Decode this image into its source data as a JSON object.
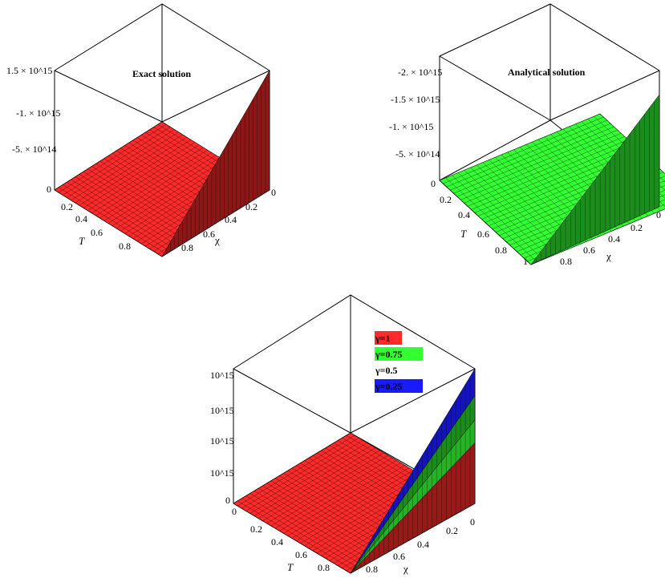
{
  "chart_data": [
    {
      "type": "surface",
      "title": "Exact solution",
      "xlabel": "χ",
      "ylabel": "T",
      "x_ticks": [
        "0",
        "0.2",
        "0.4",
        "0.6",
        "0.8"
      ],
      "y_ticks": [
        "0",
        "0.2",
        "0.4",
        "0.6",
        "0.8"
      ],
      "z_ticks": [
        "0",
        "-5. × 10^14",
        "-1. × 10^15",
        "1.5 × 10^15"
      ],
      "xlim": [
        0,
        1
      ],
      "ylim": [
        0,
        1
      ],
      "series": [
        {
          "color": "#ff2a2a",
          "z_min": 0,
          "z_max_magnitude": 1500000000000000.0
        }
      ]
    },
    {
      "type": "surface",
      "title": "Analytical solution",
      "xlabel": "χ",
      "ylabel": "T",
      "x_ticks": [
        "0",
        "0.2",
        "0.4",
        "0.6",
        "0.8"
      ],
      "y_ticks": [
        "0",
        "0.2",
        "0.4",
        "0.6",
        "0.8",
        "1"
      ],
      "z_ticks": [
        "-5. × 10^14",
        "-1. × 10^15",
        "-1.5 × 10^15",
        "-2. × 10^15"
      ],
      "xlim": [
        0,
        1
      ],
      "ylim": [
        0,
        1
      ],
      "series": [
        {
          "color": "#33ff33",
          "z_min": 0,
          "z_max_magnitude": 2000000000000000.0
        }
      ]
    },
    {
      "type": "surface",
      "title": "",
      "xlabel": "χ",
      "ylabel": "T",
      "x_ticks": [
        "0",
        "0.2",
        "0.4",
        "0.6",
        "0.8"
      ],
      "y_ticks": [
        "0",
        "0.2",
        "0.4",
        "0.6",
        "0.8"
      ],
      "z_ticks": [
        "0",
        "10^15",
        "10^15",
        "10^15",
        "10^15"
      ],
      "xlim": [
        0,
        1
      ],
      "ylim": [
        0,
        1
      ],
      "legend": "top-center",
      "series": [
        {
          "name": "γ=1",
          "color": "#ff2a2a",
          "rel_height": 0.45
        },
        {
          "name": "γ=0.75",
          "color": "#33ff33",
          "rel_height": 0.62
        },
        {
          "name": "γ=0.5",
          "color": "#ffffff",
          "rel_height": 0.8
        },
        {
          "name": "γ=0.25",
          "color": "#1a1aff",
          "rel_height": 1.0
        }
      ]
    }
  ]
}
